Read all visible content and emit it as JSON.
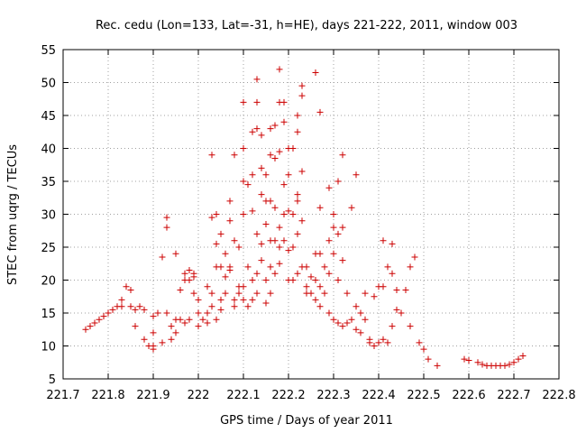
{
  "chart_data": {
    "type": "scatter",
    "title": "Rec. cedu (Lon=133, Lat=-31, h=HE), days 221-222, 2011, window 003",
    "xlabel": "GPS time / Days of year 2011",
    "ylabel": "STEC from uqrg / TECUs",
    "xlim": [
      221.7,
      222.8
    ],
    "ylim": [
      5,
      55
    ],
    "grid": true,
    "marker": "plus",
    "color": "#cc0000",
    "x_ticks": [
      "221.7",
      "221.8",
      "221.9",
      "222",
      "222.1",
      "222.2",
      "222.3",
      "222.4",
      "222.5",
      "222.6",
      "222.7",
      "222.8"
    ],
    "y_ticks": [
      "5",
      "10",
      "15",
      "20",
      "25",
      "30",
      "35",
      "40",
      "45",
      "50",
      "55"
    ],
    "points": [
      [
        221.75,
        12.5
      ],
      [
        221.76,
        13
      ],
      [
        221.77,
        13.5
      ],
      [
        221.78,
        14
      ],
      [
        221.79,
        14.5
      ],
      [
        221.8,
        15
      ],
      [
        221.81,
        15.5
      ],
      [
        221.82,
        16
      ],
      [
        221.83,
        16
      ],
      [
        221.83,
        17
      ],
      [
        221.84,
        19
      ],
      [
        221.85,
        18.5
      ],
      [
        221.85,
        16
      ],
      [
        221.86,
        15.5
      ],
      [
        221.86,
        13
      ],
      [
        221.87,
        16
      ],
      [
        221.88,
        11
      ],
      [
        221.88,
        15.5
      ],
      [
        221.89,
        10
      ],
      [
        221.9,
        14.5
      ],
      [
        221.9,
        12
      ],
      [
        221.9,
        9.5
      ],
      [
        221.9,
        10
      ],
      [
        221.91,
        15
      ],
      [
        221.92,
        23.5
      ],
      [
        221.92,
        10.5
      ],
      [
        221.93,
        15
      ],
      [
        221.93,
        29.5
      ],
      [
        221.93,
        28
      ],
      [
        221.94,
        11
      ],
      [
        221.94,
        13
      ],
      [
        221.95,
        12
      ],
      [
        221.95,
        14
      ],
      [
        221.95,
        24
      ],
      [
        221.96,
        18.5
      ],
      [
        221.96,
        14
      ],
      [
        221.97,
        20
      ],
      [
        221.97,
        21
      ],
      [
        221.97,
        13.5
      ],
      [
        221.98,
        21.5
      ],
      [
        221.98,
        20
      ],
      [
        221.98,
        14
      ],
      [
        221.99,
        18
      ],
      [
        221.99,
        20.5
      ],
      [
        221.99,
        21
      ],
      [
        222.0,
        15
      ],
      [
        222.0,
        17
      ],
      [
        222.0,
        13
      ],
      [
        222.01,
        14
      ],
      [
        222.02,
        19
      ],
      [
        222.02,
        15
      ],
      [
        222.02,
        13.5
      ],
      [
        222.03,
        18
      ],
      [
        222.03,
        16
      ],
      [
        222.03,
        39
      ],
      [
        222.03,
        29.5
      ],
      [
        222.04,
        30
      ],
      [
        222.04,
        25.5
      ],
      [
        222.04,
        22
      ],
      [
        222.04,
        14
      ],
      [
        222.05,
        27
      ],
      [
        222.05,
        22
      ],
      [
        222.05,
        17
      ],
      [
        222.05,
        15.5
      ],
      [
        222.06,
        18
      ],
      [
        222.06,
        24
      ],
      [
        222.06,
        20.5
      ],
      [
        222.07,
        21.5
      ],
      [
        222.07,
        22
      ],
      [
        222.07,
        32
      ],
      [
        222.07,
        29
      ],
      [
        222.08,
        39
      ],
      [
        222.08,
        26
      ],
      [
        222.08,
        17
      ],
      [
        222.08,
        16
      ],
      [
        222.09,
        25
      ],
      [
        222.09,
        19
      ],
      [
        222.09,
        18
      ],
      [
        222.1,
        47
      ],
      [
        222.1,
        40
      ],
      [
        222.1,
        35
      ],
      [
        222.1,
        30
      ],
      [
        222.1,
        19
      ],
      [
        222.1,
        17
      ],
      [
        222.11,
        34.5
      ],
      [
        222.11,
        22
      ],
      [
        222.11,
        16
      ],
      [
        222.12,
        42.5
      ],
      [
        222.12,
        36
      ],
      [
        222.12,
        30.5
      ],
      [
        222.12,
        20
      ],
      [
        222.12,
        17
      ],
      [
        222.13,
        50.5
      ],
      [
        222.13,
        47
      ],
      [
        222.13,
        43
      ],
      [
        222.13,
        27
      ],
      [
        222.13,
        21
      ],
      [
        222.13,
        18
      ],
      [
        222.14,
        42
      ],
      [
        222.14,
        37
      ],
      [
        222.14,
        33
      ],
      [
        222.14,
        25.5
      ],
      [
        222.14,
        23
      ],
      [
        222.15,
        36
      ],
      [
        222.15,
        32
      ],
      [
        222.15,
        28.5
      ],
      [
        222.15,
        20
      ],
      [
        222.15,
        16.5
      ],
      [
        222.16,
        43
      ],
      [
        222.16,
        39
      ],
      [
        222.16,
        32
      ],
      [
        222.16,
        26
      ],
      [
        222.16,
        22
      ],
      [
        222.16,
        18
      ],
      [
        222.17,
        43.5
      ],
      [
        222.17,
        38.5
      ],
      [
        222.17,
        31
      ],
      [
        222.17,
        26
      ],
      [
        222.17,
        21
      ],
      [
        222.18,
        52
      ],
      [
        222.18,
        47
      ],
      [
        222.18,
        39.5
      ],
      [
        222.18,
        28
      ],
      [
        222.18,
        25
      ],
      [
        222.18,
        22.5
      ],
      [
        222.19,
        47
      ],
      [
        222.19,
        44
      ],
      [
        222.19,
        34.5
      ],
      [
        222.19,
        30
      ],
      [
        222.19,
        26
      ],
      [
        222.2,
        40
      ],
      [
        222.2,
        36
      ],
      [
        222.2,
        30.5
      ],
      [
        222.2,
        24.5
      ],
      [
        222.2,
        20
      ],
      [
        222.21,
        40
      ],
      [
        222.21,
        30
      ],
      [
        222.21,
        25
      ],
      [
        222.21,
        20
      ],
      [
        222.22,
        45
      ],
      [
        222.22,
        42.5
      ],
      [
        222.22,
        33
      ],
      [
        222.22,
        32
      ],
      [
        222.22,
        27
      ],
      [
        222.22,
        21
      ],
      [
        222.23,
        49.5
      ],
      [
        222.23,
        48
      ],
      [
        222.23,
        36.5
      ],
      [
        222.23,
        29
      ],
      [
        222.23,
        22
      ],
      [
        222.24,
        22
      ],
      [
        222.24,
        19
      ],
      [
        222.24,
        18
      ],
      [
        222.25,
        20.5
      ],
      [
        222.25,
        18
      ],
      [
        222.26,
        51.5
      ],
      [
        222.26,
        24
      ],
      [
        222.26,
        20
      ],
      [
        222.26,
        17
      ],
      [
        222.27,
        45.5
      ],
      [
        222.27,
        31
      ],
      [
        222.27,
        24
      ],
      [
        222.27,
        19
      ],
      [
        222.27,
        16
      ],
      [
        222.28,
        22
      ],
      [
        222.28,
        18
      ],
      [
        222.29,
        34
      ],
      [
        222.29,
        26
      ],
      [
        222.29,
        21
      ],
      [
        222.29,
        15
      ],
      [
        222.3,
        30
      ],
      [
        222.3,
        28
      ],
      [
        222.3,
        24
      ],
      [
        222.3,
        14
      ],
      [
        222.31,
        35
      ],
      [
        222.31,
        27
      ],
      [
        222.31,
        20
      ],
      [
        222.31,
        13.5
      ],
      [
        222.32,
        39
      ],
      [
        222.32,
        28
      ],
      [
        222.32,
        23
      ],
      [
        222.32,
        13
      ],
      [
        222.33,
        18
      ],
      [
        222.33,
        13.5
      ],
      [
        222.34,
        31
      ],
      [
        222.34,
        14
      ],
      [
        222.35,
        36
      ],
      [
        222.35,
        16
      ],
      [
        222.35,
        12.5
      ],
      [
        222.36,
        15
      ],
      [
        222.36,
        12
      ],
      [
        222.37,
        18
      ],
      [
        222.37,
        14
      ],
      [
        222.38,
        11
      ],
      [
        222.38,
        10.5
      ],
      [
        222.39,
        17.5
      ],
      [
        222.39,
        10
      ],
      [
        222.4,
        19
      ],
      [
        222.4,
        10.5
      ],
      [
        222.41,
        26
      ],
      [
        222.41,
        19
      ],
      [
        222.41,
        11
      ],
      [
        222.42,
        22
      ],
      [
        222.42,
        10.5
      ],
      [
        222.43,
        25.5
      ],
      [
        222.43,
        21
      ],
      [
        222.43,
        13
      ],
      [
        222.44,
        18.5
      ],
      [
        222.44,
        15.5
      ],
      [
        222.45,
        15
      ],
      [
        222.46,
        18.5
      ],
      [
        222.47,
        22
      ],
      [
        222.47,
        13
      ],
      [
        222.48,
        23.5
      ],
      [
        222.49,
        10.5
      ],
      [
        222.5,
        9.5
      ],
      [
        222.51,
        8
      ],
      [
        222.53,
        7
      ],
      [
        222.59,
        8
      ],
      [
        222.6,
        7.8
      ],
      [
        222.62,
        7.5
      ],
      [
        222.63,
        7.2
      ],
      [
        222.64,
        7
      ],
      [
        222.65,
        7
      ],
      [
        222.66,
        7
      ],
      [
        222.67,
        7
      ],
      [
        222.68,
        7
      ],
      [
        222.69,
        7.2
      ],
      [
        222.7,
        7.5
      ],
      [
        222.71,
        8
      ],
      [
        222.72,
        8.5
      ]
    ]
  }
}
